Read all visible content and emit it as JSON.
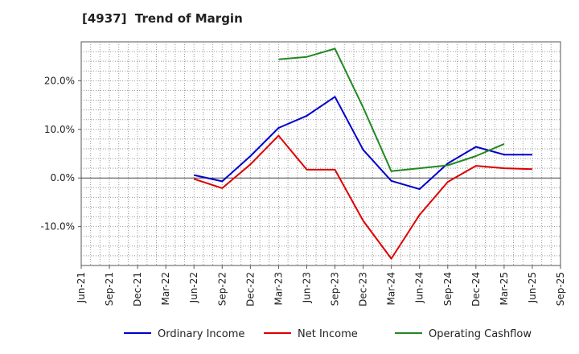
{
  "chart_data": {
    "type": "line",
    "title": "[4937]  Trend of Margin",
    "xlabel": "",
    "ylabel": "",
    "categories": [
      "Jun-21",
      "Sep-21",
      "Dec-21",
      "Mar-22",
      "Jun-22",
      "Sep-22",
      "Dec-22",
      "Mar-23",
      "Jun-23",
      "Sep-23",
      "Dec-23",
      "Mar-24",
      "Jun-24",
      "Sep-24",
      "Dec-24",
      "Mar-25",
      "Jun-25",
      "Sep-25"
    ],
    "ylim": [
      -18,
      28
    ],
    "yticks": [
      -10,
      0,
      10,
      20
    ],
    "ytick_labels": [
      "-10.0%",
      "0.0%",
      "10.0%",
      "20.0%"
    ],
    "grid": true,
    "legend_position": "bottom",
    "series": [
      {
        "name": "Ordinary Income",
        "color": "#0000cc",
        "values": [
          null,
          null,
          null,
          null,
          0.6,
          -0.7,
          4.5,
          10.3,
          12.8,
          16.7,
          5.8,
          -0.6,
          -2.3,
          3.0,
          6.4,
          4.8,
          4.8,
          null
        ]
      },
      {
        "name": "Net Income",
        "color": "#dd0000",
        "values": [
          null,
          null,
          null,
          null,
          -0.2,
          -2.1,
          2.8,
          8.7,
          1.7,
          1.7,
          -8.8,
          -16.6,
          -7.6,
          -0.8,
          2.5,
          2.0,
          1.8,
          null
        ]
      },
      {
        "name": "Operating Cashflow",
        "color": "#228822",
        "values": [
          null,
          null,
          null,
          null,
          null,
          null,
          null,
          24.4,
          24.9,
          26.6,
          14.5,
          1.4,
          2.0,
          2.6,
          4.5,
          7.0,
          null,
          null
        ]
      }
    ]
  }
}
